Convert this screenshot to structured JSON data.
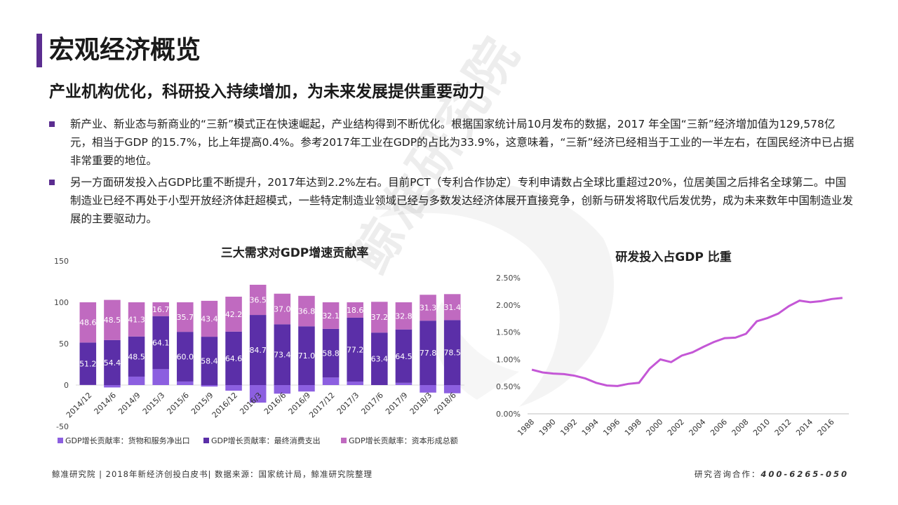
{
  "page": {
    "title": "宏观经济概览",
    "subtitle": "产业机构优化，科研投入持续增加，为未来发展提供重要动力",
    "bullets": [
      "新产业、新业态与新商业的“三新”模式正在快速崛起，产业结构得到不断优化。根据国家统计局10月发布的数据，2017 年全国“三新”经济增加值为129,578亿元，相当于GDP 的15.7%，比上年提高0.4%。参考2017年工业在GDP的占比为33.9%，这意味着，“三新”经济已经相当于工业的一半左右，在国民经济中已占据非常重要的地位。",
      "另一方面研发投入占GDP比重不断提升，2017年达到2.2%左右。目前PCT（专利合作协定）专利申请数占全球比重超过20%，位居美国之后排名全球第二。中国制造业已经不再处于小型开放经济体赶超模式，一些特定制造业领域已经与多数发达经济体展开直接竞争，创新与研发将取代后发优势，成为未来数年中国制造业发展的主要驱动力。"
    ],
    "watermark": "鲸准研究院",
    "footer_left": "鲸准研究院 | 2018年新经济创投白皮书| 数据来源：国家统计局，鲸准研究院整理",
    "footer_right_label": "研究咨询合作：",
    "footer_right_phone": "400-6265-050",
    "accent_color": "#5b2d90"
  },
  "chart_data": [
    {
      "type": "bar",
      "stacked": true,
      "title": "三大需求对GDP增速贡献率",
      "categories": [
        "2014/12",
        "2014/6",
        "2014/9",
        "2015/3",
        "2015/6",
        "2015/9",
        "2016/12",
        "2016/3",
        "2016/6",
        "2016/9",
        "2017/12",
        "2017/3",
        "2017/6",
        "2017/9",
        "2018/3",
        "2018/6"
      ],
      "ylim": [
        -50,
        150
      ],
      "yticks": [
        "150",
        "100",
        "50",
        "0",
        "-50"
      ],
      "grid": false,
      "legend_position": "bottom",
      "series": [
        {
          "name": "GDP增长贡献率：货物和服务净出口",
          "color": "#8c5fe0",
          "values": [
            0.2,
            -2.9,
            10.2,
            19.2,
            4.3,
            -1.8,
            -6.8,
            -21.2,
            -10.4,
            -7.8,
            9.1,
            4.2,
            0.0,
            2.7,
            -9.1,
            -9.9
          ]
        },
        {
          "name": "GDP增长贡献率：最终消费支出",
          "color": "#5b2fa8",
          "values": [
            51.2,
            54.4,
            48.5,
            64.1,
            60.0,
            58.4,
            64.6,
            84.7,
            73.4,
            71.0,
            58.8,
            77.2,
            63.4,
            64.5,
            77.8,
            78.5
          ]
        },
        {
          "name": "GDP增长贡献率：资本形成总额",
          "color": "#c06ac0",
          "values": [
            48.6,
            48.5,
            41.3,
            16.7,
            35.7,
            43.4,
            42.2,
            36.5,
            37.0,
            36.8,
            32.1,
            18.6,
            37.2,
            32.8,
            31.3,
            31.4
          ]
        }
      ],
      "data_labels": {
        "consumption": [
          "51.2",
          "54.4",
          "48.5",
          "64.1",
          "60.0",
          "58.4",
          "64.6",
          "84.7",
          "73.4",
          "71.0",
          "58.8",
          "77.2",
          "63.4",
          "64.5",
          "77.8",
          "78.5"
        ],
        "capital": [
          "48.6",
          "48.5",
          "41.3",
          "16.7",
          "35.7",
          "43.4",
          "42.2",
          "36.5",
          "37.0",
          "36.8",
          "32.1",
          "18.6",
          "37.2",
          "32.8",
          "31.3",
          "31.4"
        ]
      }
    },
    {
      "type": "line",
      "title": "研发投入占GDP 比重",
      "x": [
        1988,
        1989,
        1990,
        1991,
        1992,
        1993,
        1994,
        1995,
        1996,
        1997,
        1998,
        1999,
        2000,
        2001,
        2002,
        2003,
        2004,
        2005,
        2006,
        2007,
        2008,
        2009,
        2010,
        2011,
        2012,
        2013,
        2014,
        2015,
        2016,
        2017
      ],
      "y": [
        0.81,
        0.76,
        0.74,
        0.73,
        0.7,
        0.65,
        0.57,
        0.52,
        0.51,
        0.55,
        0.57,
        0.83,
        1.0,
        0.95,
        1.07,
        1.13,
        1.23,
        1.32,
        1.39,
        1.4,
        1.47,
        1.7,
        1.76,
        1.84,
        1.98,
        2.08,
        2.05,
        2.07,
        2.11,
        2.13
      ],
      "xticks": [
        "1988",
        "1990",
        "1992",
        "1994",
        "1996",
        "1998",
        "2000",
        "2002",
        "2004",
        "2006",
        "2008",
        "2010",
        "2012",
        "2014",
        "2016"
      ],
      "yticks": [
        "0.00%",
        "0.50%",
        "1.00%",
        "1.50%",
        "2.00%",
        "2.50%"
      ],
      "ylim": [
        0,
        2.5
      ],
      "color": "#c457d6",
      "grid": false
    }
  ]
}
